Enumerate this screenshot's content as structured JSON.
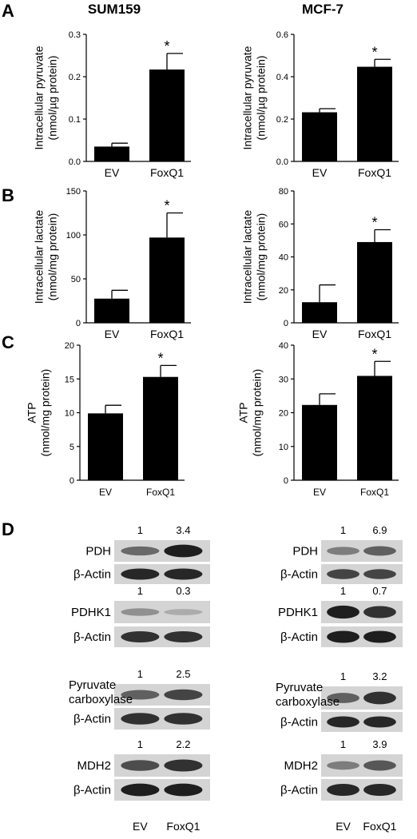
{
  "panels": {
    "a": "A",
    "b": "B",
    "c": "C",
    "d": "D"
  },
  "columns": [
    "SUM159",
    "MCF-7"
  ],
  "chart_data": [
    {
      "type": "bar",
      "panel": "A",
      "cell_line": "SUM159",
      "categories": [
        "EV",
        "FoxQ1"
      ],
      "values": [
        0.035,
        0.217
      ],
      "errors": [
        0.008,
        0.038
      ],
      "significant": [
        false,
        true
      ],
      "ylabel_lines": [
        "Intracellular pyruvate",
        "(nmol/µg protein)"
      ],
      "ylim": [
        0,
        0.3
      ],
      "yticks": [
        0.0,
        0.1,
        0.2,
        0.3
      ],
      "ytick_labels": [
        "0.0",
        "0.1",
        "0.2",
        "0.3"
      ]
    },
    {
      "type": "bar",
      "panel": "A",
      "cell_line": "MCF-7",
      "categories": [
        "EV",
        "FoxQ1"
      ],
      "values": [
        0.232,
        0.447
      ],
      "errors": [
        0.017,
        0.035
      ],
      "significant": [
        false,
        true
      ],
      "ylabel_lines": [
        "Intracellular pyruvate",
        "(nmol/µg protein)"
      ],
      "ylim": [
        0,
        0.6
      ],
      "yticks": [
        0.0,
        0.2,
        0.4,
        0.6
      ],
      "ytick_labels": [
        "0.0",
        "0.2",
        "0.4",
        "0.6"
      ]
    },
    {
      "type": "bar",
      "panel": "B",
      "cell_line": "SUM159",
      "categories": [
        "EV",
        "FoxQ1"
      ],
      "values": [
        27.5,
        97
      ],
      "errors": [
        9.5,
        28
      ],
      "significant": [
        false,
        true
      ],
      "ylabel_lines": [
        "Intracellular lactate",
        "(nmol/mg protein)"
      ],
      "ylim": [
        0,
        150
      ],
      "yticks": [
        0,
        50,
        100,
        150
      ],
      "ytick_labels": [
        "0",
        "50",
        "100",
        "150"
      ]
    },
    {
      "type": "bar",
      "panel": "B",
      "cell_line": "MCF-7",
      "categories": [
        "EV",
        "FoxQ1"
      ],
      "values": [
        12.5,
        49
      ],
      "errors": [
        10.5,
        7.5
      ],
      "significant": [
        false,
        true
      ],
      "ylabel_lines": [
        "Intracellular lactate",
        "(nmol/mg protein)"
      ],
      "ylim": [
        0,
        80
      ],
      "yticks": [
        0,
        20,
        40,
        60,
        80
      ],
      "ytick_labels": [
        "0",
        "20",
        "40",
        "60",
        "80"
      ]
    },
    {
      "type": "bar",
      "panel": "C",
      "cell_line": "SUM159",
      "categories": [
        "EV",
        "FoxQ1"
      ],
      "values": [
        9.9,
        15.3
      ],
      "errors": [
        1.2,
        1.7
      ],
      "significant": [
        false,
        true
      ],
      "ylabel_lines": [
        "ATP",
        "(nmol/mg protein)"
      ],
      "ylim": [
        0,
        20
      ],
      "yticks": [
        0,
        5,
        10,
        15,
        20
      ],
      "ytick_labels": [
        "0",
        "5",
        "10",
        "15",
        "20"
      ]
    },
    {
      "type": "bar",
      "panel": "C",
      "cell_line": "MCF-7",
      "categories": [
        "EV",
        "FoxQ1"
      ],
      "values": [
        22.3,
        30.9
      ],
      "errors": [
        3.3,
        4.3
      ],
      "significant": [
        false,
        true
      ],
      "ylabel_lines": [
        "ATP",
        "(nmol/mg protein)"
      ],
      "ylim": [
        0,
        40
      ],
      "yticks": [
        0,
        10,
        20,
        30,
        40
      ],
      "ytick_labels": [
        "0",
        "10",
        "20",
        "30",
        "40"
      ]
    }
  ],
  "significance_marker": "*",
  "western_blots": [
    {
      "cell_line": "SUM159",
      "lane_labels": [
        "EV",
        "FoxQ1"
      ],
      "blots": [
        {
          "protein_lines": [
            "PDH"
          ],
          "quant": [
            "1",
            "3.4"
          ],
          "band_intensity": [
            0.55,
            0.95
          ]
        },
        {
          "protein_lines": [
            "β-Actin"
          ],
          "quant": null,
          "band_intensity": [
            0.9,
            0.9
          ]
        },
        {
          "protein_lines": [
            "PDHK1"
          ],
          "quant": [
            "1",
            "0.3"
          ],
          "band_intensity": [
            0.35,
            0.2
          ]
        },
        {
          "protein_lines": [
            "β-Actin"
          ],
          "quant": null,
          "band_intensity": [
            0.85,
            0.85
          ]
        },
        {
          "protein_lines": [
            "Pyruvate",
            "carboxylase"
          ],
          "quant": [
            "1",
            "2.5"
          ],
          "band_intensity": [
            0.6,
            0.75
          ]
        },
        {
          "protein_lines": [
            "β-Actin"
          ],
          "quant": null,
          "band_intensity": [
            0.85,
            0.85
          ]
        },
        {
          "protein_lines": [
            "MDH2"
          ],
          "quant": [
            "1",
            "2.2"
          ],
          "band_intensity": [
            0.7,
            0.85
          ]
        },
        {
          "protein_lines": [
            "β-Actin"
          ],
          "quant": null,
          "band_intensity": [
            0.95,
            0.95
          ]
        }
      ]
    },
    {
      "cell_line": "MCF-7",
      "lane_labels": [
        "EV",
        "FoxQ1"
      ],
      "blots": [
        {
          "protein_lines": [
            "PDH"
          ],
          "quant": [
            "1",
            "6.9"
          ],
          "band_intensity": [
            0.45,
            0.6
          ]
        },
        {
          "protein_lines": [
            "β-Actin"
          ],
          "quant": null,
          "band_intensity": [
            0.75,
            0.75
          ]
        },
        {
          "protein_lines": [
            "PDHK1"
          ],
          "quant": [
            "1",
            "0.7"
          ],
          "band_intensity": [
            0.95,
            0.85
          ]
        },
        {
          "protein_lines": [
            "β-Actin"
          ],
          "quant": null,
          "band_intensity": [
            0.95,
            0.95
          ]
        },
        {
          "protein_lines": [
            "Pyruvate",
            "carboxylase"
          ],
          "quant": [
            "1",
            "3.2"
          ],
          "band_intensity": [
            0.6,
            0.85
          ]
        },
        {
          "protein_lines": [
            "β-Actin"
          ],
          "quant": null,
          "band_intensity": [
            0.9,
            0.9
          ]
        },
        {
          "protein_lines": [
            "MDH2"
          ],
          "quant": [
            "1",
            "3.9"
          ],
          "band_intensity": [
            0.45,
            0.65
          ]
        },
        {
          "protein_lines": [
            "β-Actin"
          ],
          "quant": null,
          "band_intensity": [
            0.9,
            0.9
          ]
        }
      ]
    }
  ]
}
